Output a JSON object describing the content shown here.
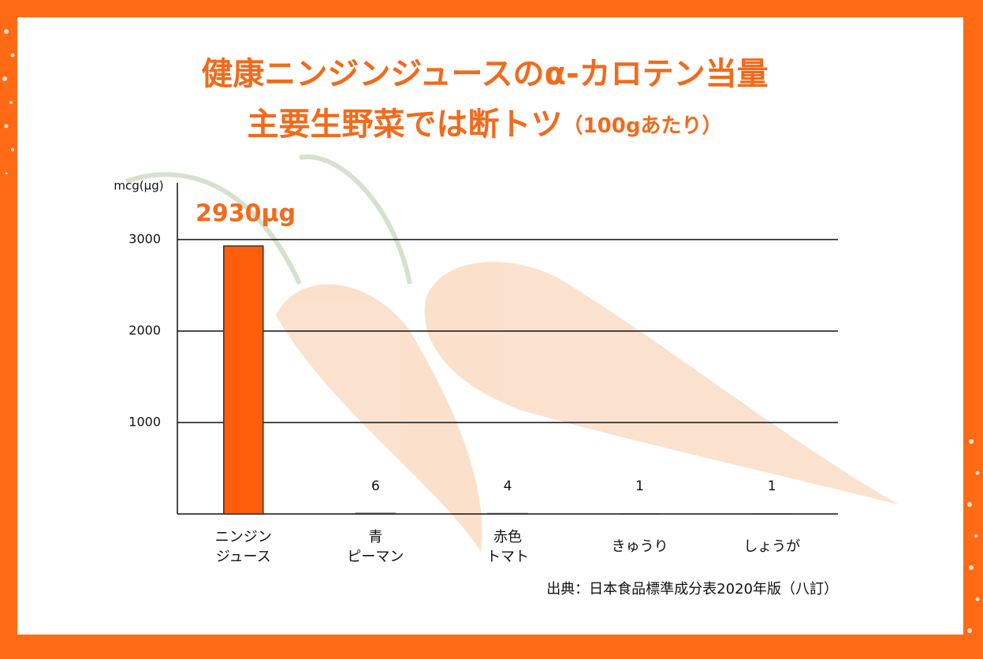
{
  "chart_data": {
    "type": "bar",
    "title": "健康ニンジンジュースのα-カロテン当量",
    "subtitle": "主要生野菜では断トツ",
    "subtitle_note": "（100gあたり）",
    "y_axis_label": "mcg(μg)",
    "categories": [
      [
        "ニンジン",
        "ジュース"
      ],
      [
        "青",
        "ピーマン"
      ],
      [
        "赤色",
        "トマト"
      ],
      [
        "きゅうり"
      ],
      [
        "しょうが"
      ]
    ],
    "values": [
      2930,
      6,
      4,
      1,
      1
    ],
    "value_labels": [
      "2930μg",
      "6",
      "4",
      "1",
      "1"
    ],
    "colors": [
      "#ff5f0a",
      "#f5b93b",
      "#f5b93b",
      "#4f8f52",
      "#4f8f52"
    ],
    "ylim": [
      0,
      3620
    ],
    "yticks": [
      1000,
      2000,
      3000
    ],
    "grid": true,
    "source": "出典：日本食品標準成分表2020年版（八訂）"
  }
}
